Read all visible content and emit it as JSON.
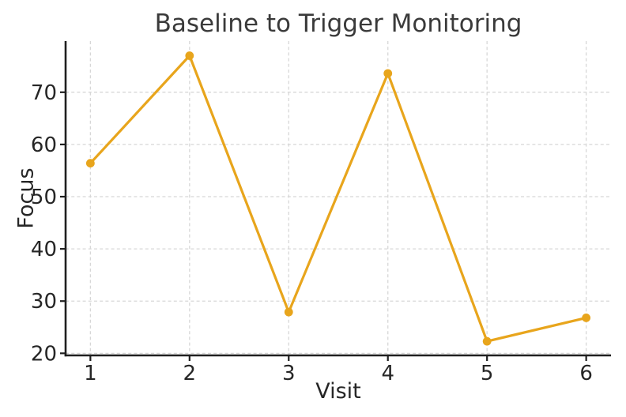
{
  "chart_data": {
    "type": "line",
    "title": "Baseline to Trigger Monitoring",
    "xlabel": "Visit",
    "ylabel": "Focus",
    "x": [
      1,
      2,
      3,
      4,
      5,
      6
    ],
    "values": [
      56.4,
      77.0,
      27.9,
      73.6,
      22.3,
      26.8
    ],
    "x_ticks": [
      1,
      2,
      3,
      4,
      5,
      6
    ],
    "x_tick_labels": [
      "1",
      "2",
      "3",
      "4",
      "5",
      "6"
    ],
    "y_ticks": [
      20,
      30,
      40,
      50,
      60,
      70
    ],
    "y_tick_labels": [
      "20",
      "30",
      "40",
      "50",
      "60",
      "70"
    ],
    "xlim": [
      0.75,
      6.25
    ],
    "ylim": [
      19.6,
      79.8
    ],
    "grid": true,
    "grid_style": "dashed",
    "legend_position": "none",
    "marker": "circle",
    "colors": {
      "line": "#E8A51C",
      "marker": "#E8A51C",
      "grid": "#d7d7d7",
      "spine": "#1f1f1f",
      "tick_label": "#262626",
      "title": "#3a3a3a",
      "background": "#ffffff"
    }
  }
}
